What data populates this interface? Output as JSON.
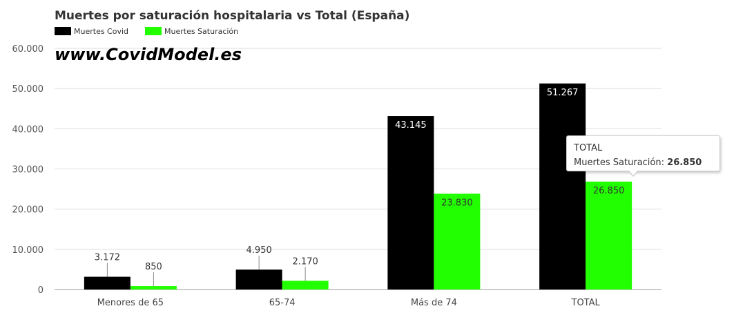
{
  "chart_data": {
    "type": "bar",
    "title": "Muertes por saturación hospitalaria vs Total (España)",
    "watermark": "www.CovidModel.es",
    "categories": [
      "Menores de 65",
      "65-74",
      "Más de 74",
      "TOTAL"
    ],
    "series": [
      {
        "name": "Muertes Covid",
        "color": "#000000",
        "values": [
          3172,
          4950,
          43145,
          51267
        ],
        "labels": [
          "3.172",
          "4.950",
          "43.145",
          "51.267"
        ]
      },
      {
        "name": "Muertes Saturación",
        "color": "#22ff00",
        "values": [
          850,
          2170,
          23830,
          26850
        ],
        "labels": [
          "850",
          "2.170",
          "23.830",
          "26.850"
        ]
      }
    ],
    "ylim": [
      0,
      60000
    ],
    "yticks": [
      0,
      10000,
      20000,
      30000,
      40000,
      50000,
      60000
    ],
    "ytick_labels": [
      "0",
      "10.000",
      "20.000",
      "30.000",
      "40.000",
      "50.000",
      "60.000"
    ],
    "grid": true,
    "legend_position": "top-left"
  },
  "tooltip": {
    "category": "TOTAL",
    "series_name": "Muertes Saturación",
    "separator": ":",
    "value": "26.850"
  }
}
